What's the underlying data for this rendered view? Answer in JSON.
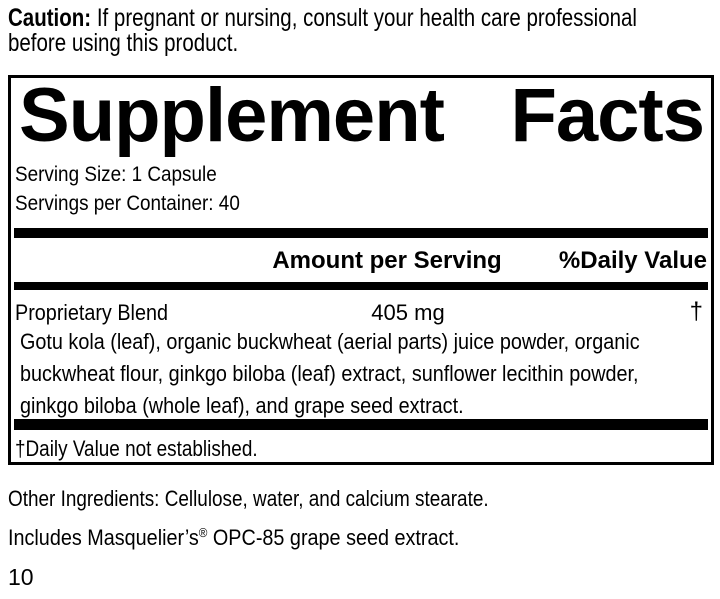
{
  "caution": {
    "label": "Caution:",
    "line1": "If pregnant or nursing, consult your health care professional",
    "line2": "before using this product."
  },
  "facts": {
    "title_word1": "Supplement",
    "title_word2": "Facts",
    "serving_size": "Serving Size: 1 Capsule",
    "servings_per_container": "Servings per Container: 40",
    "columns": {
      "amount": "Amount per Serving",
      "daily_value": "%Daily Value"
    },
    "blend": {
      "name": "Proprietary Blend",
      "amount": "405 mg",
      "daily_value": "†",
      "description_lines": [
        "Gotu kola (leaf), organic buckwheat (aerial parts) juice powder, organic",
        "buckwheat flour, ginkgo biloba (leaf) extract, sunflower lecithin powder,",
        "ginkgo biloba (whole leaf), and grape seed extract."
      ]
    },
    "footnote": "†Daily Value not established."
  },
  "other_ingredients": "Other Ingredients: Cellulose, water, and calcium stearate.",
  "includes": {
    "part1": "Includes Masquelier’s",
    "reg_mark": "®",
    "part2": " OPC-85 grape seed extract."
  },
  "page_number": "10",
  "colors": {
    "text": "#000000",
    "background": "#ffffff",
    "rule": "#000000"
  }
}
